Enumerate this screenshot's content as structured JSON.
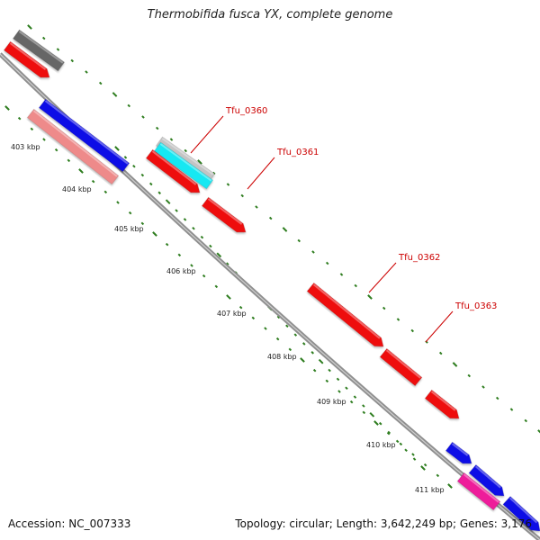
{
  "title": "Thermobifida fusca YX, complete genome",
  "footer": {
    "accession": "Accession: NC_007333",
    "summary": "Topology: circular; Length: 3,642,249 bp; Genes: 3,176"
  },
  "ticks": [
    "403 kbp",
    "404 kbp",
    "405 kbp",
    "406 kbp",
    "407 kbp",
    "408 kbp",
    "409 kbp",
    "410 kbp",
    "411 kbp"
  ],
  "gene_labels": [
    "Tfu_0360",
    "Tfu_0361",
    "Tfu_0362",
    "Tfu_0363"
  ],
  "colors": {
    "backbone": "#8f8f8f",
    "tick": "#2e7d1f",
    "label": "#cc0000",
    "red": "#ee1111",
    "blue": "#1010e6",
    "salmon": "#ee8a8a",
    "gray": "#666666",
    "lightgray": "#c4c4c4",
    "cyan": "#16e8f2",
    "magenta": "#ee1a9a"
  }
}
